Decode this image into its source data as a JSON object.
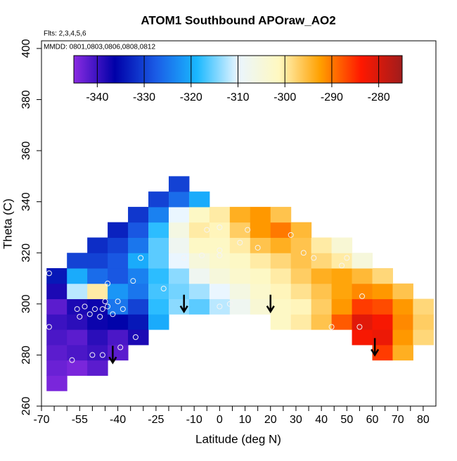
{
  "chart_data": {
    "type": "heatmap",
    "title": "ATOM1 Southbound APOraw_AO2",
    "subtitle_lines": [
      "Flts: 2,3,4,5,6",
      "MMDD: 0801,0803,0806,0808,0812"
    ],
    "x_label": "Latitude (deg N)",
    "y_label": "Theta (C)",
    "xlim": [
      -70,
      85
    ],
    "ylim": [
      260,
      403
    ],
    "xticks": [
      -70,
      -55,
      -40,
      -25,
      -10,
      0,
      10,
      20,
      30,
      40,
      50,
      60,
      70,
      80
    ],
    "xminorticks": [
      -65,
      -60,
      -50,
      -45,
      -35,
      -30,
      -20,
      -15,
      -5,
      5,
      15,
      25,
      35,
      45,
      55,
      65,
      75
    ],
    "yticks": [
      260,
      280,
      300,
      320,
      340,
      360,
      380,
      400
    ],
    "zlim": [
      -345,
      -275
    ],
    "zticks": [
      -340,
      -330,
      -320,
      -310,
      -300,
      -290,
      -280
    ],
    "colorscale": [
      "#8a2be2",
      "#0000a8",
      "#1a5ce6",
      "#1ab8ff",
      "#eaf6ff",
      "#fff8c0",
      "#ffa000",
      "#ff1800",
      "#a01c1c"
    ],
    "x": [
      -64,
      -56,
      -48,
      -40,
      -32,
      -24,
      -16,
      -8,
      0,
      8,
      16,
      24,
      32,
      40,
      48,
      56,
      64,
      72,
      80
    ],
    "y": [
      269,
      275,
      281,
      287,
      293,
      299,
      305,
      311,
      317,
      323,
      329,
      335,
      341,
      347
    ],
    "z": [
      [
        -344,
        null,
        null,
        null,
        null,
        null,
        null,
        null,
        null,
        null,
        null,
        null,
        null,
        null,
        null,
        null,
        null,
        null,
        null
      ],
      [
        -343,
        -344,
        -342,
        null,
        null,
        null,
        null,
        null,
        null,
        null,
        null,
        null,
        null,
        null,
        null,
        null,
        null,
        null,
        null
      ],
      [
        -342,
        -341,
        -340,
        -342,
        null,
        null,
        null,
        null,
        null,
        null,
        null,
        null,
        null,
        null,
        null,
        null,
        -286,
        -294,
        null
      ],
      [
        -341,
        -342,
        -339,
        -341,
        -338,
        null,
        null,
        null,
        null,
        null,
        null,
        null,
        null,
        null,
        null,
        -283,
        -282,
        -292,
        -298
      ],
      [
        -340,
        -339,
        -337,
        -336,
        -334,
        -320,
        null,
        null,
        null,
        null,
        null,
        -302,
        -300,
        -296,
        -288,
        -281,
        -283,
        -291,
        -297
      ],
      [
        -342,
        -338,
        -337,
        -325,
        -330,
        -318,
        -314,
        -316,
        -312,
        -308,
        -304,
        -302,
        -301,
        -297,
        -292,
        -286,
        -287,
        -292,
        -298
      ],
      [
        -338,
        -312,
        -300,
        -322,
        -325,
        -317,
        -315,
        -313,
        -310,
        -306,
        -303,
        -301,
        -299,
        -296,
        -293,
        -291,
        -292,
        -296,
        null
      ],
      [
        -334,
        -320,
        -326,
        -328,
        -324,
        -318,
        -314,
        -308,
        -305,
        -303,
        -302,
        -300,
        -297,
        -294,
        -293,
        -295,
        -298,
        null,
        null
      ],
      [
        null,
        -330,
        -330,
        -328,
        -320,
        -316,
        -310,
        -305,
        -303,
        -302,
        -300,
        -298,
        -296,
        -298,
        -300,
        -305,
        null,
        null,
        null
      ],
      [
        null,
        null,
        -332,
        -330,
        -325,
        -316,
        -308,
        -302,
        -302,
        -300,
        -296,
        -294,
        -296,
        -300,
        -304,
        null,
        null,
        null,
        null
      ],
      [
        null,
        null,
        null,
        -333,
        -328,
        -318,
        -306,
        -300,
        -301,
        -297,
        -292,
        -290,
        -295,
        null,
        null,
        null,
        null,
        null,
        null
      ],
      [
        null,
        null,
        null,
        null,
        -331,
        -324,
        -310,
        -302,
        -300,
        -294,
        -292,
        -296,
        null,
        null,
        null,
        null,
        null,
        null,
        null
      ],
      [
        null,
        null,
        null,
        null,
        null,
        -330,
        -326,
        -320,
        null,
        null,
        null,
        null,
        null,
        null,
        null,
        null,
        null,
        null,
        null
      ],
      [
        null,
        null,
        null,
        null,
        null,
        null,
        -330,
        null,
        null,
        null,
        null,
        null,
        null,
        null,
        null,
        null,
        null,
        null,
        null
      ]
    ],
    "points": {
      "x": [
        -67,
        -58,
        -56,
        -55,
        -53,
        -51,
        -49,
        -47,
        -46,
        -45,
        -44,
        -44,
        -42,
        -40,
        -39,
        -38,
        -33,
        -34,
        -31,
        -22,
        -14,
        -7,
        -5,
        0,
        0,
        0,
        0,
        4,
        8,
        11,
        15,
        28,
        33,
        37,
        44,
        48,
        50,
        55,
        56,
        -50,
        -46,
        -67
      ],
      "y": [
        291,
        278,
        298,
        295,
        299,
        296,
        298,
        295,
        298,
        301,
        299,
        308,
        296,
        301,
        283,
        298,
        287,
        309,
        318,
        306,
        318,
        319,
        329,
        330,
        321,
        319,
        299,
        300,
        324,
        329,
        322,
        327,
        320,
        318,
        291,
        315,
        318,
        291,
        303,
        280,
        280,
        312
      ]
    },
    "arrows": {
      "x": [
        -42,
        -14,
        20,
        61
      ],
      "y": [
        277,
        297,
        297,
        280
      ]
    }
  }
}
